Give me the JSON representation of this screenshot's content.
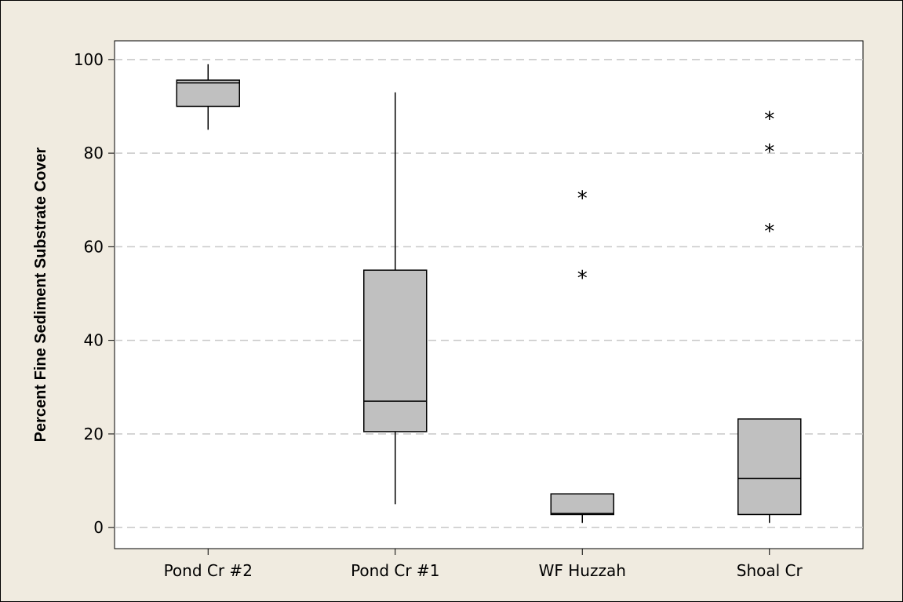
{
  "chart_data": {
    "type": "boxplot",
    "title": "",
    "xlabel": "",
    "ylabel": "Percent Fine Sediment Substrate Cover",
    "ylim": [
      -4.5,
      104
    ],
    "yticks": [
      0,
      20,
      40,
      60,
      80,
      100
    ],
    "grid": "horizontal-dashed",
    "categories": [
      "Pond Cr #2",
      "Pond Cr #1",
      "WF Huzzah",
      "Shoal Cr"
    ],
    "boxes": [
      {
        "whisker_low": 85,
        "q1": 90,
        "median": 95,
        "q3": 95.6,
        "whisker_high": 99,
        "outliers": []
      },
      {
        "whisker_low": 5,
        "q1": 20.5,
        "median": 27,
        "q3": 55,
        "whisker_high": 93,
        "outliers": []
      },
      {
        "whisker_low": 1,
        "q1": 2.8,
        "median": 3,
        "q3": 7.2,
        "whisker_high": 7.2,
        "outliers": [
          53,
          70
        ]
      },
      {
        "whisker_low": 1,
        "q1": 2.8,
        "median": 10.5,
        "q3": 23.2,
        "whisker_high": 23.2,
        "outliers": [
          63,
          80,
          87
        ]
      }
    ],
    "colors": {
      "background": "#f0ebe0",
      "plot_area": "#ffffff",
      "box_fill": "#c0c0c0",
      "gridline": "#c8c8c8",
      "ink": "#000000"
    }
  }
}
